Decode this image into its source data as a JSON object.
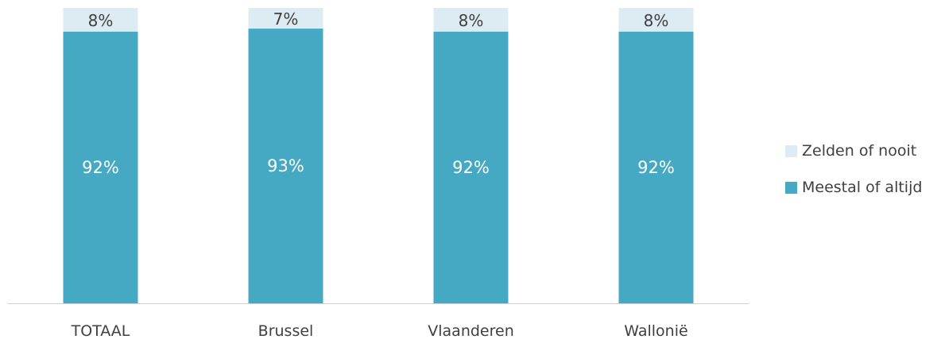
{
  "chart_data": {
    "type": "bar",
    "stacked": true,
    "percent": true,
    "categories": [
      "TOTAAL",
      "Brussel",
      "Vlaanderen",
      "Wallonië"
    ],
    "series": [
      {
        "name": "Meestal of altijd",
        "values": [
          92,
          93,
          92,
          92
        ],
        "labels": [
          "92%",
          "93%",
          "92%",
          "92%"
        ],
        "color": "#46a9c3"
      },
      {
        "name": "Zelden of nooit",
        "values": [
          8,
          7,
          8,
          8
        ],
        "labels": [
          "8%",
          "7%",
          "8%",
          "8%"
        ],
        "color": "#dcecf2"
      }
    ],
    "ylim": [
      0,
      100
    ],
    "grid": false,
    "legend_position": "right"
  }
}
